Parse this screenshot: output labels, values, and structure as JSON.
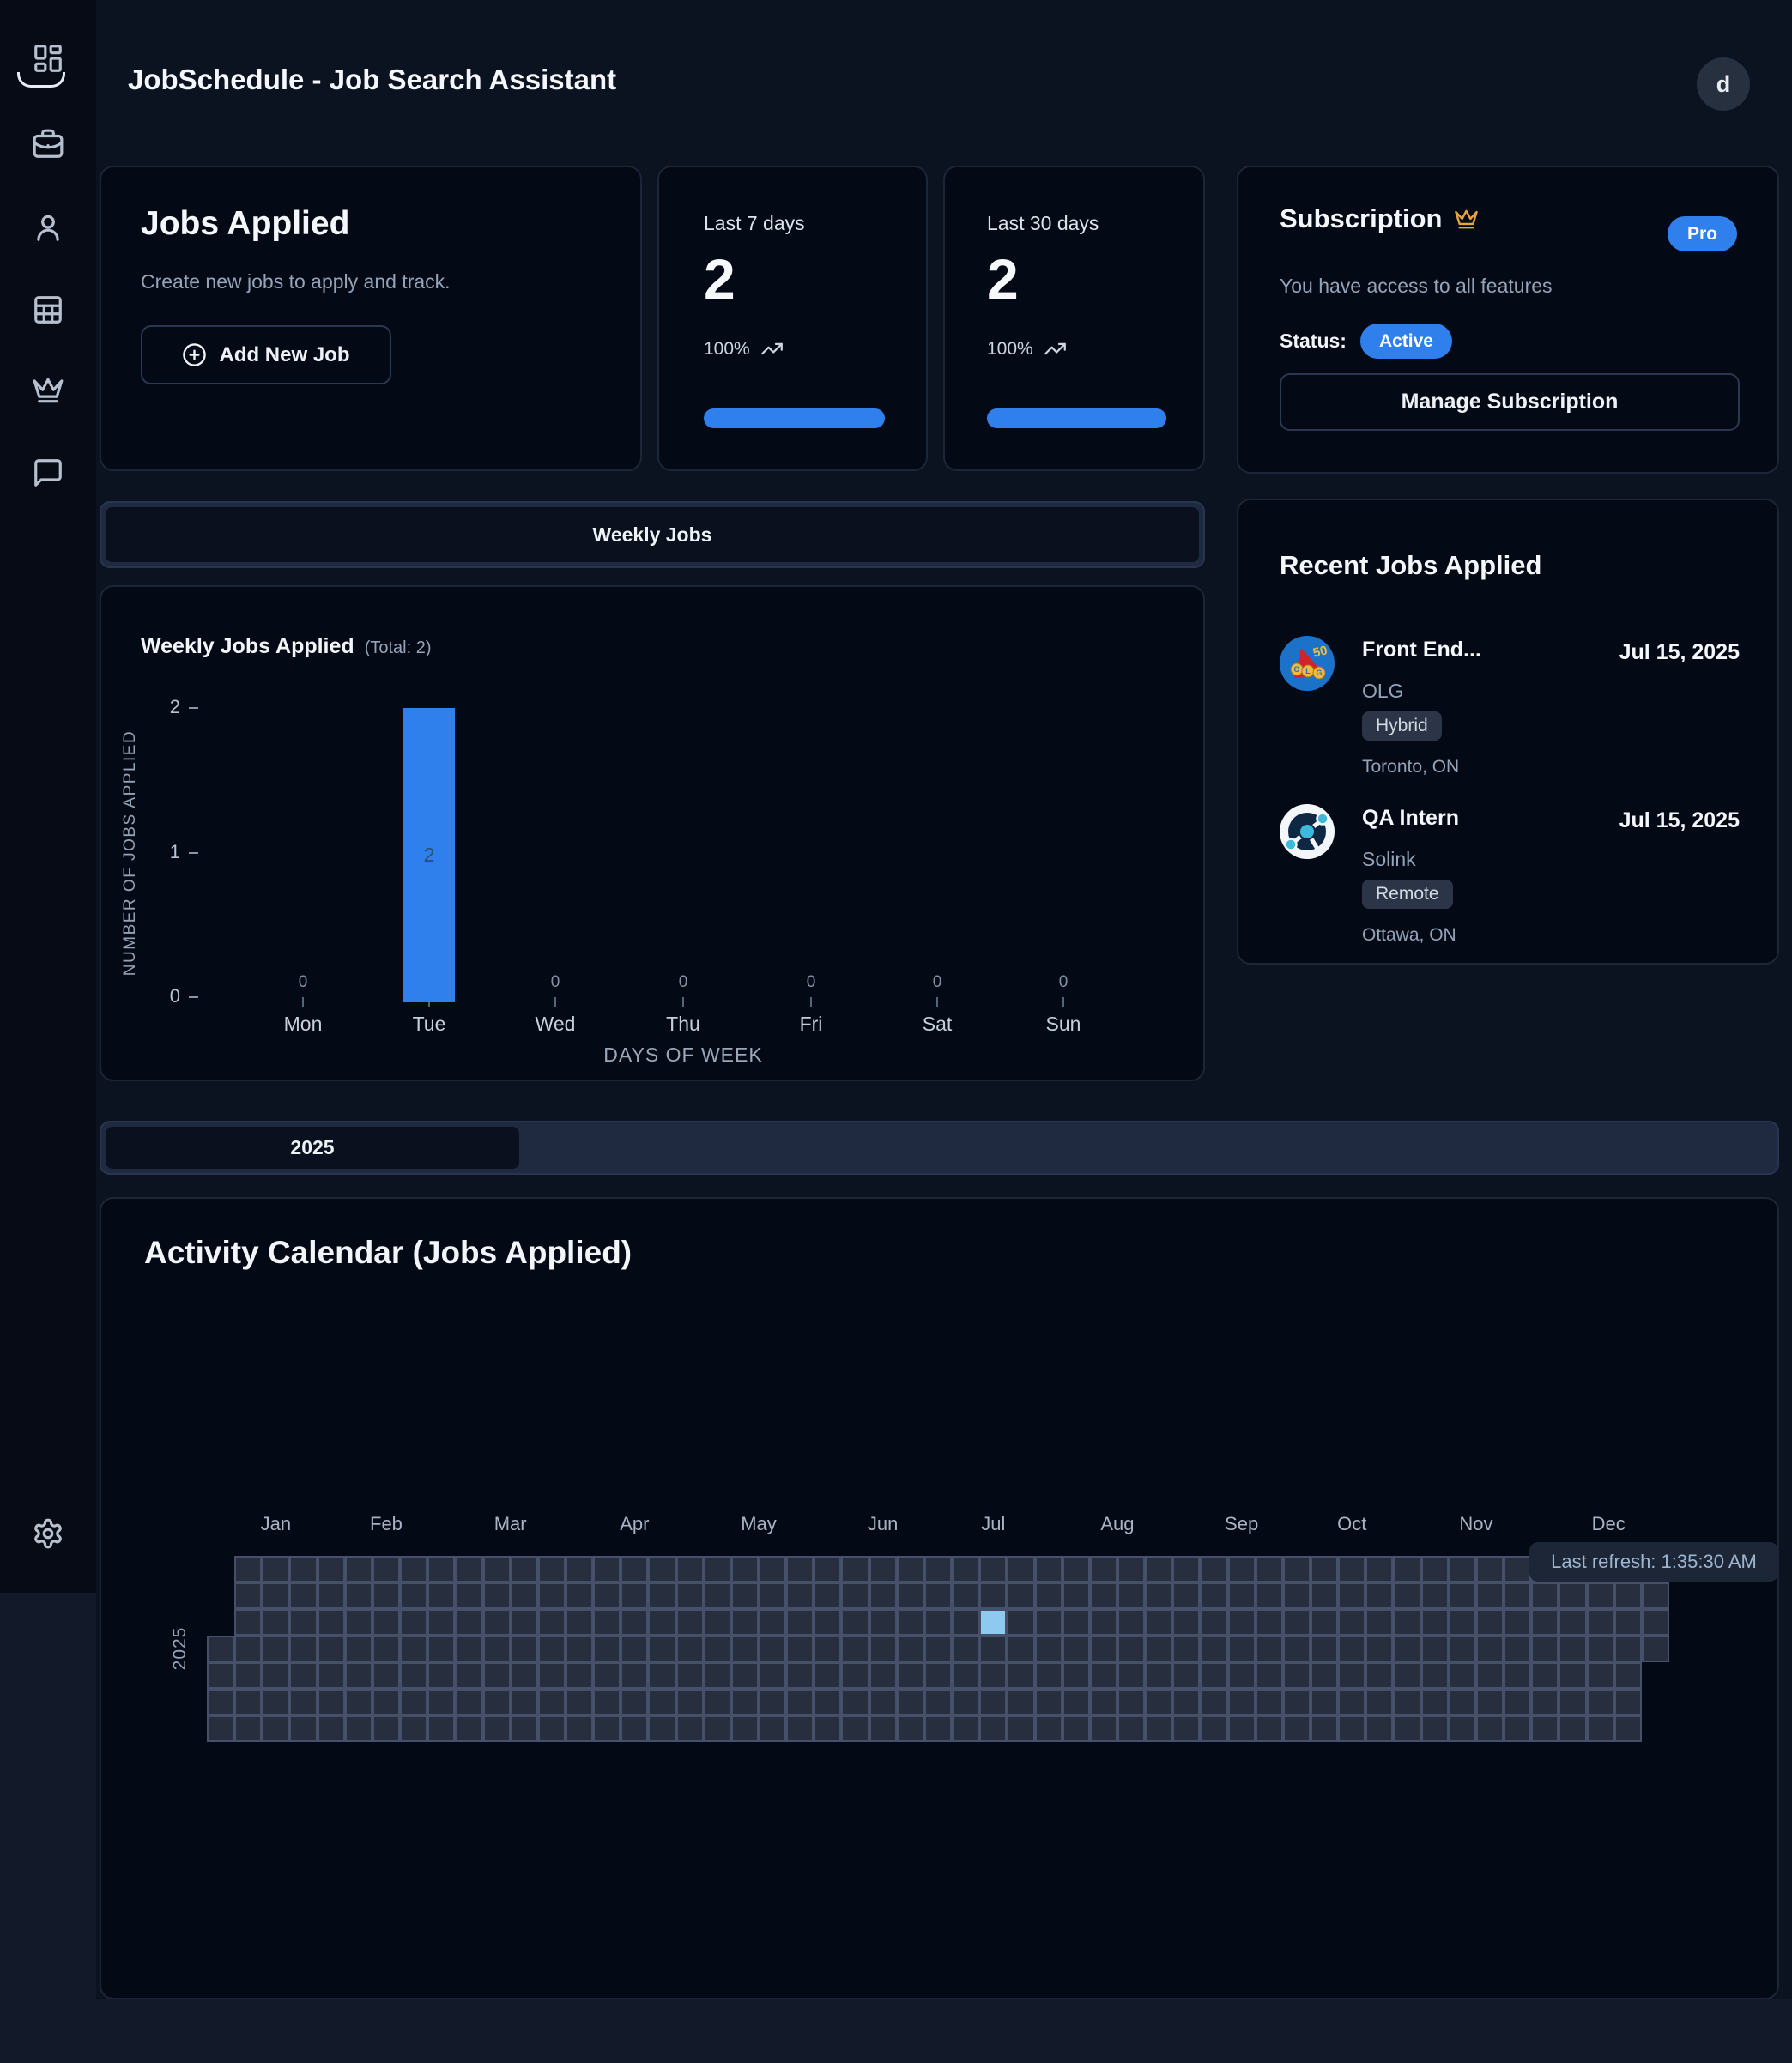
{
  "app": {
    "title": "JobSchedule - Job Search Assistant",
    "avatar_initial": "d"
  },
  "sidebar": {
    "items": [
      {
        "icon": "dashboard-icon",
        "active": true
      },
      {
        "icon": "briefcase-icon",
        "active": false
      },
      {
        "icon": "user-icon",
        "active": false
      },
      {
        "icon": "table-icon",
        "active": false
      },
      {
        "icon": "crown-icon",
        "active": false
      },
      {
        "icon": "message-icon",
        "active": false
      }
    ],
    "bottom_icon": "settings-icon"
  },
  "jobs_applied": {
    "title": "Jobs Applied",
    "subtitle": "Create new jobs to apply and track.",
    "button": "Add New Job"
  },
  "stats": {
    "last7": {
      "label": "Last 7 days",
      "value": "2",
      "percent": "100%",
      "progress": 100
    },
    "last30": {
      "label": "Last 30 days",
      "value": "2",
      "percent": "100%",
      "progress": 100
    }
  },
  "subscription": {
    "title": "Subscription",
    "plan_badge": "Pro",
    "description": "You have access to all features",
    "status_label": "Status:",
    "status_value": "Active",
    "button": "Manage Subscription",
    "accent_color": "#2f80ed",
    "crown_color": "#e2a63d"
  },
  "tabs": {
    "weekly": "Weekly Jobs",
    "year": "2025"
  },
  "recent": {
    "title": "Recent Jobs Applied",
    "items": [
      {
        "title": "Front End...",
        "company": "OLG",
        "badge": "Hybrid",
        "location": "Toronto, ON",
        "date": "Jul 15, 2025",
        "logo": "olg-logo"
      },
      {
        "title": "QA Intern",
        "company": "Solink",
        "badge": "Remote",
        "location": "Ottawa, ON",
        "date": "Jul 15, 2025",
        "logo": "solink-logo"
      }
    ]
  },
  "chart_data": [
    {
      "type": "bar",
      "title": "Weekly Jobs Applied",
      "total_label": "(Total: 2)",
      "categories": [
        "Mon",
        "Tue",
        "Wed",
        "Thu",
        "Fri",
        "Sat",
        "Sun"
      ],
      "values": [
        0,
        2,
        0,
        0,
        0,
        0,
        0
      ],
      "xlabel": "DAYS OF WEEK",
      "ylabel": "NUMBER OF JOBS APPLIED",
      "ylim": [
        0,
        2
      ],
      "yticks": [
        0,
        1,
        2
      ],
      "bar_color": "#2f80ed",
      "bar_label_color": "#2a4e73",
      "grid": false,
      "legend": "none"
    },
    {
      "type": "heatmap",
      "title": "Activity Calendar (Jobs Applied)",
      "year_label": "2025",
      "months": [
        "Jan",
        "Feb",
        "Mar",
        "Apr",
        "May",
        "Jun",
        "Jul",
        "Aug",
        "Sep",
        "Oct",
        "Nov",
        "Dec"
      ],
      "month_start_weeks": [
        0,
        4,
        8,
        13,
        17,
        22,
        26,
        30,
        35,
        39,
        43,
        48
      ],
      "weeks": 53,
      "days_per_week": 7,
      "first_week_start_row": 3,
      "last_week_end_row": 3,
      "active_cells": [
        {
          "week": 28,
          "row": 2,
          "date": "Jul 15, 2025",
          "count": 2
        }
      ],
      "colors": {
        "cell": "#272f3f",
        "lattice": "#46506a",
        "active": "#8ec9ef"
      },
      "tooltip": "Last refresh: 1:35:30 AM"
    }
  ]
}
